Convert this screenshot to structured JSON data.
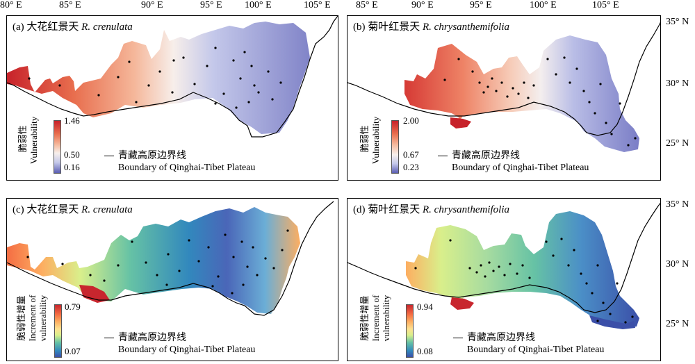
{
  "axes": {
    "top_ticks": [
      "80° E",
      "85° E",
      "90° E",
      "95° E",
      "100° E",
      "105° E"
    ],
    "right_ticks_upper": [
      "35° N",
      "30° N",
      "25° N"
    ],
    "right_ticks_lower": [
      "35° N",
      "30° N",
      "25° N"
    ]
  },
  "colors": {
    "vulnerability": [
      "#c7222a",
      "#e86e4e",
      "#f5b79a",
      "#f7f0ec",
      "#c4c8ea",
      "#8c8fd0",
      "#5a5db2"
    ],
    "increment": [
      "#c8262e",
      "#f46d43",
      "#fdae61",
      "#fee090",
      "#d9ef8b",
      "#66c2a5",
      "#3288bd",
      "#3b4fa8"
    ]
  },
  "panels": [
    {
      "label": "(a)",
      "title_cn": "大花红景天",
      "title_latin": "R. crenulata",
      "colorbar": {
        "max": "1.46",
        "mid": "0.50",
        "min": "0.16"
      },
      "ylabel_cn": "脆弱性",
      "ylabel_en": "Vulnerability",
      "legend_cn": "青藏高原边界线",
      "legend_en": "Boundary of Qinghai-Tibet Plateau"
    },
    {
      "label": "(b)",
      "title_cn": "菊叶红景天",
      "title_latin": "R. chrysanthemifolia",
      "colorbar": {
        "max": "2.00",
        "mid": "0.67",
        "min": "0.23"
      },
      "ylabel_cn": "脆弱性",
      "ylabel_en": "Vulnerability",
      "legend_cn": "青藏高原边界线",
      "legend_en": "Boundary of Qinghai-Tibet Plateau"
    },
    {
      "label": "(c)",
      "title_cn": "大花红景天",
      "title_latin": "R. crenulata",
      "colorbar": {
        "max": "0.79",
        "min": "0.07"
      },
      "ylabel_cn": "脆弱性增量",
      "ylabel_en_1": "Increment of",
      "ylabel_en_2": "vulnerability",
      "legend_cn": "青藏高原边界线",
      "legend_en": "Boundary of Qinghai-Tibet Plateau"
    },
    {
      "label": "(d)",
      "title_cn": "菊叶红景天",
      "title_latin": "R. chrysanthemifolia",
      "colorbar": {
        "max": "0.94",
        "min": "0.08"
      },
      "ylabel_cn": "脆弱性增量",
      "ylabel_en_1": "Increment of",
      "ylabel_en_2": "vulnerability",
      "legend_cn": "青藏高原边界线",
      "legend_en": "Boundary of Qinghai-Tibet Plateau"
    }
  ]
}
